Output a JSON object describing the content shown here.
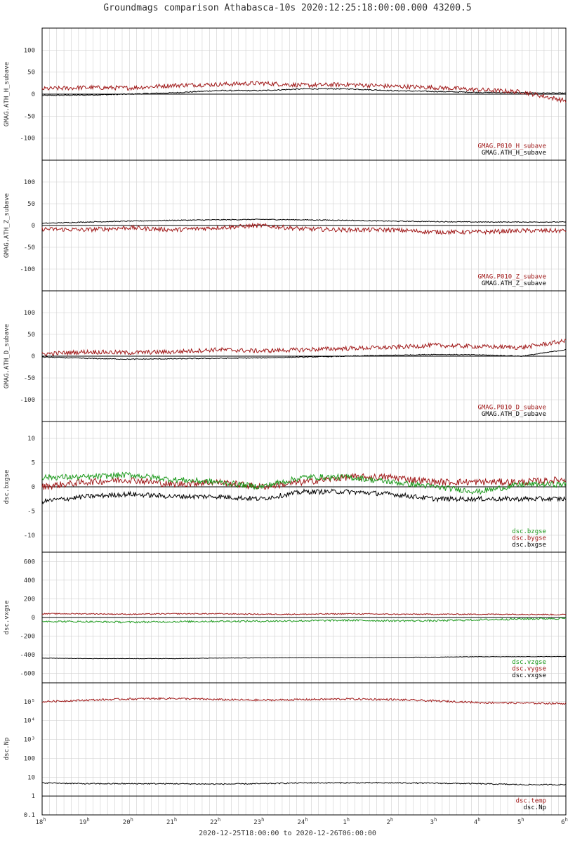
{
  "title": "Groundmags comparison Athabasca-10s 2020:12:25:18:00:00.000 43200.5",
  "x_range_label": "2020-12-25T18:00:00 to 2020-12-26T06:00:00",
  "colors": {
    "black": "#000000",
    "red": "#a01818",
    "green": "#1c9a1c",
    "grid": "#d0d0d0"
  },
  "chart_data": [
    {
      "type": "line",
      "ylabel": "GMAG.ATH_H_subave",
      "ylim": [
        -150,
        150
      ],
      "yticks": [
        "100",
        "50",
        "0",
        "-50",
        "-100"
      ],
      "ytick_values": [
        100,
        50,
        0,
        -50,
        -100
      ],
      "x": [
        "18h",
        "19h",
        "20h",
        "21h",
        "22h",
        "23h",
        "24h",
        "1h",
        "2h",
        "3h",
        "4h",
        "5h",
        "6h"
      ],
      "legend": [
        "GMAG.P010_H_subave",
        "GMAG.ATH_H_subave"
      ],
      "series": [
        {
          "name": "GMAG.P010_H_subave",
          "color": "red",
          "values": [
            12,
            15,
            14,
            20,
            22,
            25,
            20,
            22,
            18,
            15,
            10,
            5,
            -15
          ],
          "noise": 5
        },
        {
          "name": "GMAG.ATH_H_subave",
          "color": "black",
          "values": [
            -3,
            -2,
            0,
            3,
            8,
            8,
            12,
            12,
            8,
            6,
            4,
            3,
            2
          ],
          "noise": 1.2
        }
      ]
    },
    {
      "type": "line",
      "ylabel": "GMAG.ATH_Z_subave",
      "ylim": [
        -150,
        150
      ],
      "yticks": [
        "100",
        "50",
        "0",
        "-50",
        "-100"
      ],
      "ytick_values": [
        100,
        50,
        0,
        -50,
        -100
      ],
      "x": [
        "18h",
        "19h",
        "20h",
        "21h",
        "22h",
        "23h",
        "24h",
        "1h",
        "2h",
        "3h",
        "4h",
        "5h",
        "6h"
      ],
      "legend": [
        "GMAG.P010_Z_subave",
        "GMAG.ATH_Z_subave"
      ],
      "series": [
        {
          "name": "GMAG.P010_Z_subave",
          "color": "red",
          "values": [
            -8,
            -10,
            -5,
            -10,
            -5,
            0,
            -8,
            -10,
            -10,
            -15,
            -15,
            -12,
            -12
          ],
          "noise": 5
        },
        {
          "name": "GMAG.ATH_Z_subave",
          "color": "black",
          "values": [
            5,
            8,
            10,
            12,
            13,
            14,
            13,
            12,
            10,
            9,
            8,
            8,
            8
          ],
          "noise": 1
        }
      ]
    },
    {
      "type": "line",
      "ylabel": "GMAG.ATH_D_subave",
      "ylim": [
        -150,
        150
      ],
      "yticks": [
        "100",
        "50",
        "0",
        "-50",
        "-100"
      ],
      "ytick_values": [
        100,
        50,
        0,
        -50,
        -100
      ],
      "x": [
        "18h",
        "19h",
        "20h",
        "21h",
        "22h",
        "23h",
        "24h",
        "1h",
        "2h",
        "3h",
        "4h",
        "5h",
        "6h"
      ],
      "legend": [
        "GMAG.P010_D_subave",
        "GMAG.ATH_D_subave"
      ],
      "series": [
        {
          "name": "GMAG.P010_D_subave",
          "color": "red",
          "values": [
            5,
            10,
            8,
            10,
            15,
            12,
            15,
            18,
            20,
            25,
            22,
            20,
            35
          ],
          "noise": 5
        },
        {
          "name": "GMAG.ATH_D_subave",
          "color": "black",
          "values": [
            -2,
            -5,
            -7,
            -6,
            -5,
            -4,
            -2,
            0,
            2,
            4,
            3,
            0,
            15
          ],
          "noise": 1
        }
      ]
    },
    {
      "type": "line",
      "ylabel": "dsc.bxgse",
      "ylim": [
        -13.5,
        13.5
      ],
      "yticks": [
        "10",
        "5",
        "0",
        "-5",
        "-10"
      ],
      "ytick_values": [
        10,
        5,
        0,
        -5,
        -10
      ],
      "x": [
        "18h",
        "19h",
        "20h",
        "21h",
        "22h",
        "23h",
        "24h",
        "1h",
        "2h",
        "3h",
        "4h",
        "5h",
        "6h"
      ],
      "legend": [
        "dsc.bzgse",
        "dsc.bygse",
        "dsc.bxgse"
      ],
      "series": [
        {
          "name": "dsc.bzgse",
          "color": "green",
          "values": [
            2,
            2,
            2.5,
            1.5,
            1,
            0,
            2,
            2,
            1,
            0,
            -1,
            0.5,
            0.5
          ],
          "noise": 0.6
        },
        {
          "name": "dsc.bygse",
          "color": "red",
          "values": [
            0,
            1,
            1.5,
            0.5,
            1,
            0,
            1,
            2,
            2,
            1,
            1,
            1,
            1.5
          ],
          "noise": 0.7
        },
        {
          "name": "dsc.bxgse",
          "color": "black",
          "values": [
            -3,
            -2,
            -1.5,
            -2,
            -2,
            -2.5,
            -1,
            -1,
            -1.5,
            -2.5,
            -2.5,
            -2.5,
            -2.5
          ],
          "noise": 0.5
        }
      ]
    },
    {
      "type": "line",
      "ylabel": "dsc.vxgse",
      "ylim": [
        -700,
        700
      ],
      "yticks": [
        "600",
        "400",
        "200",
        "0",
        "-200",
        "-400",
        "-600"
      ],
      "ytick_values": [
        600,
        400,
        200,
        0,
        -200,
        -400,
        -600
      ],
      "x": [
        "18h",
        "19h",
        "20h",
        "21h",
        "22h",
        "23h",
        "24h",
        "1h",
        "2h",
        "3h",
        "4h",
        "5h",
        "6h"
      ],
      "legend": [
        "dsc.vzgse",
        "dsc.vygse",
        "dsc.vxgse"
      ],
      "series": [
        {
          "name": "dsc.vzgse",
          "color": "green",
          "values": [
            -40,
            -45,
            -50,
            -45,
            -40,
            -40,
            -35,
            -30,
            -35,
            -35,
            -25,
            -15,
            -10
          ],
          "noise": 10
        },
        {
          "name": "dsc.vygse",
          "color": "red",
          "values": [
            40,
            40,
            35,
            40,
            40,
            35,
            35,
            40,
            35,
            35,
            35,
            35,
            30
          ],
          "noise": 6
        },
        {
          "name": "dsc.vxgse",
          "color": "black",
          "values": [
            -435,
            -440,
            -440,
            -440,
            -435,
            -432,
            -430,
            -430,
            -428,
            -425,
            -420,
            -420,
            -418
          ],
          "noise": 2
        }
      ]
    },
    {
      "type": "line",
      "ylabel": "dsc.Np",
      "log_scale": true,
      "ylim": [
        0.1,
        1000000
      ],
      "yticks": [
        "10⁵",
        "10⁴",
        "10³",
        "100",
        "10",
        "1",
        "0.1"
      ],
      "ytick_values": [
        100000,
        10000,
        1000,
        100,
        10,
        1,
        0.1
      ],
      "x": [
        "18h",
        "19h",
        "20h",
        "21h",
        "22h",
        "23h",
        "24h",
        "1h",
        "2h",
        "3h",
        "4h",
        "5h",
        "6h"
      ],
      "legend": [
        "dsc.temp",
        "dsc.Np"
      ],
      "series": [
        {
          "name": "dsc.temp",
          "color": "red",
          "values": [
            100000,
            120000,
            140000,
            150000,
            130000,
            120000,
            130000,
            140000,
            130000,
            110000,
            90000,
            85000,
            80000
          ],
          "noise": 0.05
        },
        {
          "name": "dsc.Np",
          "color": "black",
          "values": [
            5,
            4.5,
            4.5,
            4.5,
            4.3,
            4.5,
            5,
            5,
            5,
            4.8,
            4.5,
            4,
            4
          ],
          "noise": 0.03
        }
      ]
    }
  ]
}
